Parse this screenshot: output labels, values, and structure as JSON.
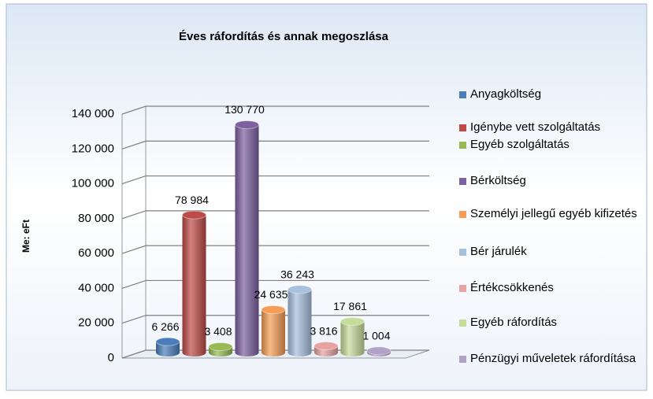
{
  "chart_data": {
    "type": "bar3d",
    "title": "Éves ráfordítás és annak megoszlása",
    "y_label": "Me: eFt",
    "categories": [
      "Anyagköltség",
      "Igénybe vett szolgáltatás",
      "Egyéb szolgáltatás",
      "Bérköltség",
      "Személyi jellegű egyéb kifizetés",
      "Bér járulék",
      "Értékcsökkenés",
      "Egyéb ráfordítás",
      "Pénzügyi műveletek ráfordítása"
    ],
    "values": [
      6266,
      78984,
      3408,
      130770,
      24635,
      36243,
      3816,
      17861,
      1004
    ],
    "value_labels": [
      "6 266",
      "78 984",
      "3 408",
      "130 770",
      "24 635",
      "36 243",
      "3 816",
      "17 861",
      "1 004"
    ],
    "colors": [
      "#4a7ebb",
      "#be4b48",
      "#98b954",
      "#7d60a0",
      "#f59d56",
      "#a7c0de",
      "#e6a3a1",
      "#c6dc9a",
      "#b3a2c7"
    ],
    "ylim": [
      0,
      140000
    ],
    "yticks": [
      0,
      {
        "value": 20000,
        "label": "20 000"
      },
      {
        "value": 40000,
        "label": "40 000"
      },
      {
        "value": 60000,
        "label": "60 000"
      },
      {
        "value": 80000,
        "label": "80 000"
      },
      {
        "value": 100000,
        "label": "100 000"
      },
      {
        "value": 120000,
        "label": "120 000"
      },
      {
        "value": 140000,
        "label": "140 000"
      }
    ],
    "grid": true,
    "legend": "right"
  }
}
